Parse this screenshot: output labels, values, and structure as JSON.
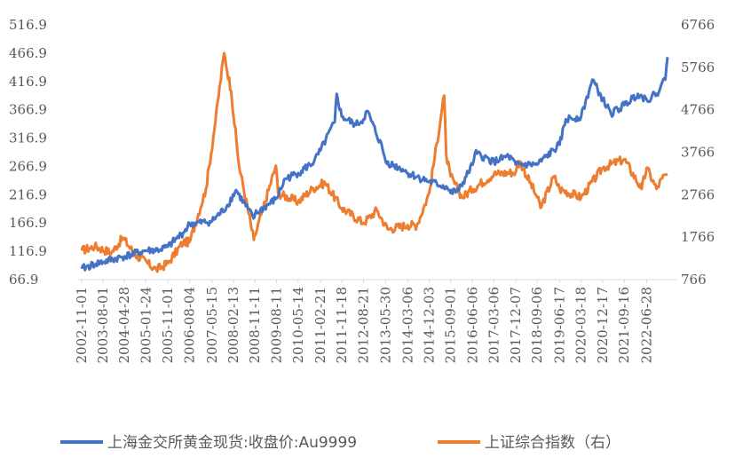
{
  "chart_data": {
    "type": "line",
    "title": "",
    "xlabel": "",
    "ylabel": "",
    "x_tick_labels": [
      "2002-11-01",
      "2003-08-01",
      "2004-04-28",
      "2005-01-24",
      "2005-11-01",
      "2006-08-04",
      "2007-05-15",
      "2008-02-13",
      "2008-11-11",
      "2009-08-11",
      "2010-05-14",
      "2011-02-21",
      "2011-11-18",
      "2012-08-21",
      "2013-05-30",
      "2014-03-06",
      "2014-12-03",
      "2015-09-01",
      "2016-06-06",
      "2017-03-06",
      "2017-12-07",
      "2018-09-06",
      "2019-06-17",
      "2020-03-18",
      "2020-12-17",
      "2021-09-16",
      "2022-06-28"
    ],
    "y_left_ticks": [
      "516.9",
      "466.9",
      "416.9",
      "366.9",
      "316.9",
      "266.9",
      "216.9",
      "166.9",
      "116.9",
      "66.9"
    ],
    "y_right_ticks": [
      "6766",
      "5766",
      "4766",
      "3766",
      "2766",
      "1766",
      "766"
    ],
    "y_left_range": [
      66.9,
      516.9
    ],
    "y_right_range": [
      766,
      6766
    ],
    "series": [
      {
        "name": "上海金交所黄金现货:收盘价:Au9999",
        "axis": "left",
        "color": "#4472C4",
        "x": [
          "2002-11-01",
          "2003-05-01",
          "2003-08-01",
          "2004-04-28",
          "2005-01-24",
          "2005-08-01",
          "2005-11-01",
          "2006-05-15",
          "2006-08-04",
          "2007-05-15",
          "2007-11-15",
          "2008-03-15",
          "2008-10-24",
          "2008-11-11",
          "2009-08-11",
          "2009-12-01",
          "2010-05-14",
          "2010-12-01",
          "2011-02-21",
          "2011-08-22",
          "2011-09-15",
          "2011-11-18",
          "2012-05-15",
          "2012-08-21",
          "2012-10-04",
          "2013-04-16",
          "2013-05-30",
          "2013-12-31",
          "2014-03-06",
          "2014-12-03",
          "2015-07-20",
          "2015-09-01",
          "2015-12-17",
          "2016-06-06",
          "2016-07-06",
          "2017-03-06",
          "2017-09-08",
          "2017-12-07",
          "2018-09-06",
          "2019-06-17",
          "2019-09-04",
          "2020-03-18",
          "2020-08-07",
          "2020-12-17",
          "2021-03-31",
          "2021-09-16",
          "2022-03-08",
          "2022-06-28",
          "2022-11-03",
          "2023-01-10",
          "2023-02-20",
          "2023-03-20"
        ],
        "values": [
          86,
          95,
          98,
          108,
          118,
          120,
          125,
          150,
          165,
          170,
          195,
          225,
          175,
          182,
          210,
          245,
          255,
          275,
          295,
          345,
          395,
          355,
          340,
          350,
          365,
          300,
          275,
          262,
          255,
          240,
          230,
          220,
          225,
          270,
          290,
          275,
          285,
          270,
          270,
          305,
          350,
          355,
          420,
          385,
          360,
          375,
          395,
          385,
          395,
          415,
          420,
          460
        ]
      },
      {
        "name": "上证综合指数（右）",
        "axis": "right",
        "color": "#ED7D31",
        "x": [
          "2002-11-01",
          "2003-04-15",
          "2003-11-15",
          "2004-04-07",
          "2004-09-15",
          "2005-06-06",
          "2005-11-01",
          "2006-05-15",
          "2006-08-04",
          "2007-02-27",
          "2007-05-30",
          "2007-10-16",
          "2008-01-14",
          "2008-04-18",
          "2008-10-28",
          "2008-11-11",
          "2009-08-04",
          "2009-09-01",
          "2010-05-14",
          "2010-11-08",
          "2011-04-18",
          "2011-11-18",
          "2012-08-21",
          "2013-02-06",
          "2013-06-25",
          "2014-03-06",
          "2014-07-01",
          "2014-12-03",
          "2015-06-12",
          "2015-07-08",
          "2015-09-01",
          "2016-01-27",
          "2016-06-06",
          "2017-03-06",
          "2017-12-07",
          "2018-01-29",
          "2018-09-06",
          "2018-10-18",
          "2019-04-08",
          "2019-06-17",
          "2020-03-18",
          "2020-12-17",
          "2021-09-16",
          "2022-04-26",
          "2022-06-28",
          "2022-10-31",
          "2023-01-10",
          "2023-03-20"
        ],
        "values": [
          1450,
          1550,
          1400,
          1750,
          1350,
          1000,
          1150,
          1650,
          1650,
          2900,
          4100,
          6100,
          5200,
          3500,
          1700,
          1800,
          3450,
          2800,
          2600,
          2900,
          3050,
          2450,
          2100,
          2400,
          1950,
          2050,
          2050,
          2800,
          5100,
          3700,
          3200,
          2700,
          2900,
          3250,
          3300,
          3550,
          2700,
          2450,
          3200,
          2900,
          2700,
          3400,
          3600,
          2900,
          3400,
          2900,
          3150,
          3250
        ]
      }
    ],
    "legend_position": "bottom",
    "grid": false
  }
}
